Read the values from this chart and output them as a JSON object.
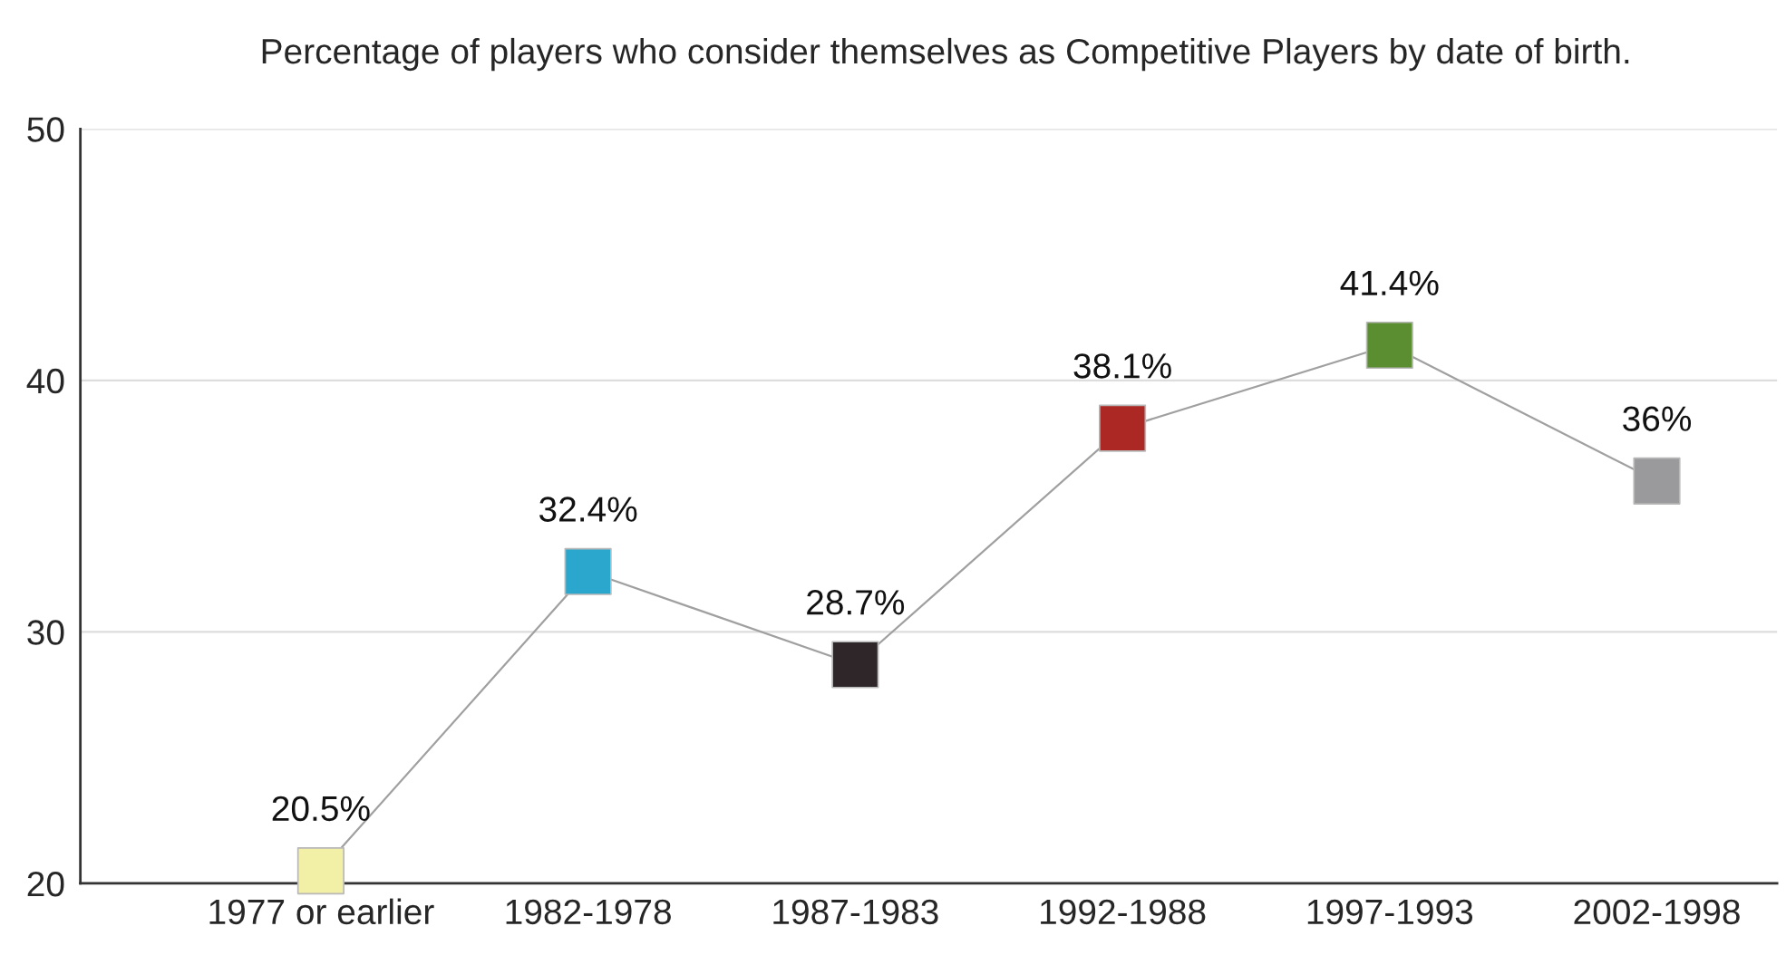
{
  "chart_data": {
    "type": "line",
    "title": "Percentage of players who consider themselves as Competitive Players by date of birth.",
    "categories": [
      "1977 or earlier",
      "1982-1978",
      "1987-1983",
      "1992-1988",
      "1997-1993",
      "2002-1998"
    ],
    "series": [
      {
        "color": "#a0a0a0",
        "colors": [
          "#f2efa6",
          "#2ba6cc",
          "#2e2628",
          "#ac2824",
          "#5a8e30",
          "#9a9a9c"
        ],
        "values": [
          20.5,
          32.4,
          28.7,
          38.1,
          41.4,
          36
        ],
        "value_labels": [
          "20.5%",
          "32.4%",
          "28.7%",
          "38.1%",
          "41.4%",
          "36%"
        ]
      }
    ],
    "ylim": [
      20,
      50
    ],
    "yticks": [
      20,
      30,
      40,
      50
    ],
    "grid": "y",
    "marker": "square",
    "line_style": "solid"
  }
}
